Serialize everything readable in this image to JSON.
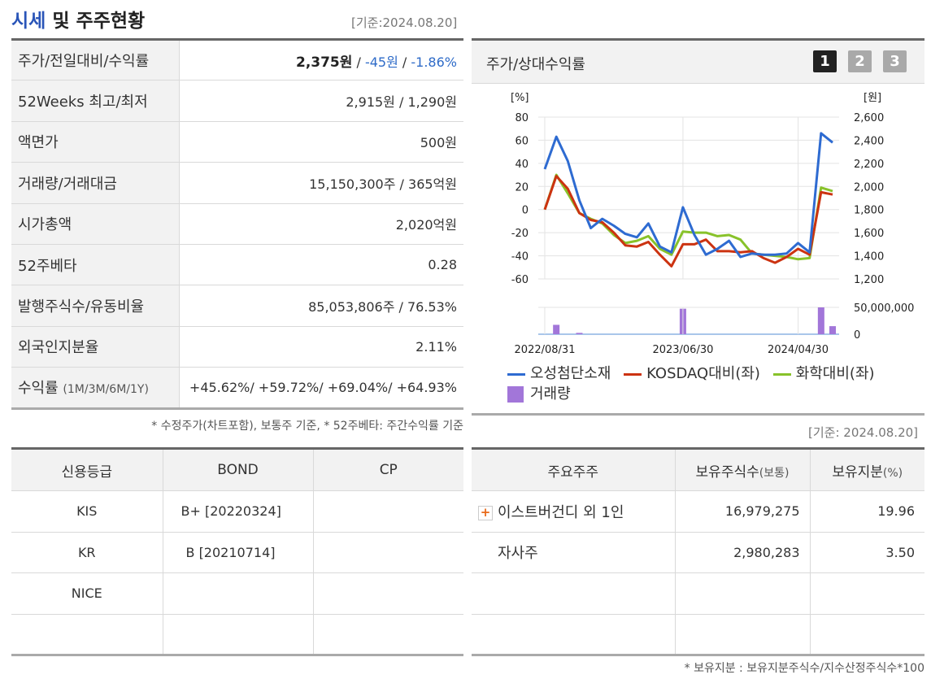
{
  "header": {
    "title_accent": "시세",
    "title_rest": " 및 주주현황",
    "basedate": "[기준:2024.08.20]"
  },
  "price_table": {
    "rows": [
      {
        "label": "주가/전일대비/수익률"
      },
      {
        "label": "52Weeks 최고/최저",
        "value": "2,915원 / 1,290원"
      },
      {
        "label": "액면가",
        "value": "500원"
      },
      {
        "label": "거래량/거래대금",
        "value": "15,150,300주 / 365억원"
      },
      {
        "label": "시가총액",
        "value": "2,020억원"
      },
      {
        "label": "52주베타",
        "value": "0.28"
      },
      {
        "label": "발행주식수/유동비율",
        "value": "85,053,806주 / 76.53%"
      },
      {
        "label": "외국인지분율",
        "value": "2.11%"
      },
      {
        "label": "수익률",
        "label_small": "(1M/3M/6M/1Y)"
      }
    ],
    "price": "2,375원",
    "change": "-45원",
    "change_pct": "-1.86%",
    "returns": "+45.62%/ +59.72%/ +69.04%/ +64.93%"
  },
  "price_note": "* 수정주가(차트포함), 보통주 기준, * 52주베타: 주간수익률 기준",
  "credit_table": {
    "headers": [
      "신용등급",
      "BOND",
      "CP"
    ],
    "rows": [
      {
        "agency": "KIS",
        "bond": "B+ [20220324]",
        "cp": ""
      },
      {
        "agency": "KR",
        "bond": "B [20210714]",
        "cp": ""
      },
      {
        "agency": "NICE",
        "bond": "",
        "cp": ""
      },
      {
        "agency": "",
        "bond": "",
        "cp": ""
      }
    ]
  },
  "chart_panel": {
    "title": "주가/상대수익률",
    "pages": [
      "1",
      "2",
      "3"
    ],
    "active_page": 0,
    "legend": {
      "s1": "오성첨단소재",
      "s2": "KOSDAQ대비(좌)",
      "s3": "화학대비(좌)",
      "vol": "거래량"
    }
  },
  "chart_data": {
    "type": "line",
    "left_unit": "[%]",
    "right_unit": "[원]",
    "left_ticks": [
      "80",
      "60",
      "40",
      "20",
      "0",
      "-20",
      "-40",
      "-60"
    ],
    "right_ticks": [
      "2,600",
      "2,400",
      "2,200",
      "2,000",
      "1,800",
      "1,600",
      "1,400",
      "1,200"
    ],
    "vol_ticks": [
      "50,000,000",
      "0"
    ],
    "x_labels": [
      "2022/08/31",
      "2023/06/30",
      "2024/04/30"
    ],
    "ylim_left": [
      -60,
      80
    ],
    "colors": {
      "s1": "#2e6bd1",
      "s2": "#cc3311",
      "s3": "#88c22a",
      "vol": "#a276d9"
    },
    "series": [
      {
        "name": "오성첨단소재",
        "values": [
          35,
          63,
          42,
          8,
          -16,
          -8,
          -14,
          -21,
          -24,
          -12,
          -32,
          -37,
          2,
          -22,
          -39,
          -34,
          -27,
          -41,
          -38,
          -39,
          -39,
          -38,
          -29,
          -37,
          66,
          58
        ]
      },
      {
        "name": "KOSDAQ대비(좌)",
        "values": [
          0,
          29,
          18,
          -3,
          -9,
          -11,
          -20,
          -31,
          -32,
          -28,
          -39,
          -49,
          -30,
          -30,
          -26,
          -36,
          -36,
          -37,
          -36,
          -42,
          -46,
          -41,
          -34,
          -39,
          15,
          13
        ]
      },
      {
        "name": "화학대비(좌)",
        "values": [
          0,
          30,
          14,
          -3,
          -8,
          -12,
          -22,
          -29,
          -27,
          -23,
          -34,
          -39,
          -19,
          -20,
          -20,
          -23,
          -22,
          -26,
          -38,
          -39,
          -40,
          -41,
          -43,
          -42,
          19,
          16
        ]
      }
    ],
    "volume": [
      0,
      0.35,
      0,
      0.05,
      0,
      0,
      0,
      0,
      0,
      0,
      0,
      0,
      0.95,
      0,
      0,
      0,
      0,
      0,
      0,
      0,
      0,
      0,
      0,
      0,
      1.0,
      0.3
    ]
  },
  "shareholder_basedate": "[기준: 2024.08.20]",
  "shareholder_table": {
    "headers": {
      "name": "주요주주",
      "shares": "보유주식수",
      "shares_small": "(보통)",
      "pct": "보유지분",
      "pct_small": "(%)"
    },
    "rows": [
      {
        "name": "이스트버건디 외 1인",
        "shares": "16,979,275",
        "pct": "19.96",
        "expand": "+"
      },
      {
        "name": "자사주",
        "shares": "2,980,283",
        "pct": "3.50"
      },
      {
        "name": "",
        "shares": "",
        "pct": ""
      },
      {
        "name": "",
        "shares": "",
        "pct": ""
      }
    ]
  },
  "shareholder_note": "* 보유지분 : 보유지분주식수/지수산정주식수*100"
}
